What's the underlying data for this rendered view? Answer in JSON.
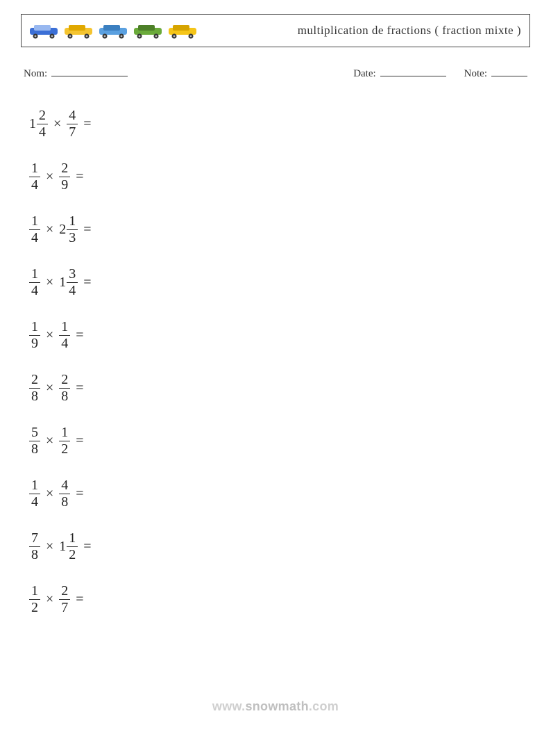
{
  "header": {
    "title": "multiplication de fractions ( fraction mixte )",
    "title_color": "#333333",
    "title_fontsize": 17,
    "border_color": "#444444",
    "vehicles": [
      {
        "name": "sedan-blue",
        "body": "#3b6fd6",
        "accent": "#98b8f0"
      },
      {
        "name": "bus-yellow",
        "body": "#f4c430",
        "accent": "#e0a800"
      },
      {
        "name": "pickup-blue",
        "body": "#5aa0e0",
        "accent": "#3b7fc0"
      },
      {
        "name": "tow-green",
        "body": "#6aaa3a",
        "accent": "#4c7f28"
      },
      {
        "name": "hatchback-yellow",
        "body": "#f5c518",
        "accent": "#d6a400"
      }
    ]
  },
  "meta": {
    "name_label": "Nom:",
    "date_label": "Date:",
    "note_label": "Note:",
    "name_blank_width": 110,
    "date_blank_width": 95,
    "note_blank_width": 52
  },
  "style": {
    "text_color": "#222222",
    "background_color": "#ffffff",
    "problem_fontsize": 20,
    "problem_row_height": 76,
    "times_symbol": "×",
    "equals_symbol": "="
  },
  "problems": [
    {
      "a": {
        "whole": 1,
        "num": 2,
        "den": 4
      },
      "b": {
        "num": 4,
        "den": 7
      }
    },
    {
      "a": {
        "num": 1,
        "den": 4
      },
      "b": {
        "num": 2,
        "den": 9
      }
    },
    {
      "a": {
        "num": 1,
        "den": 4
      },
      "b": {
        "whole": 2,
        "num": 1,
        "den": 3
      }
    },
    {
      "a": {
        "num": 1,
        "den": 4
      },
      "b": {
        "whole": 1,
        "num": 3,
        "den": 4
      }
    },
    {
      "a": {
        "num": 1,
        "den": 9
      },
      "b": {
        "num": 1,
        "den": 4
      }
    },
    {
      "a": {
        "num": 2,
        "den": 8
      },
      "b": {
        "num": 2,
        "den": 8
      }
    },
    {
      "a": {
        "num": 5,
        "den": 8
      },
      "b": {
        "num": 1,
        "den": 2
      }
    },
    {
      "a": {
        "num": 1,
        "den": 4
      },
      "b": {
        "num": 4,
        "den": 8
      }
    },
    {
      "a": {
        "num": 7,
        "den": 8
      },
      "b": {
        "whole": 1,
        "num": 1,
        "den": 2
      }
    },
    {
      "a": {
        "num": 1,
        "den": 2
      },
      "b": {
        "num": 2,
        "den": 7
      }
    }
  ],
  "footer": {
    "prefix": "www.",
    "main": "snowmath",
    "suffix": ".com",
    "color_light": "#cfcfcf",
    "color_mid": "#bfbfbf"
  }
}
